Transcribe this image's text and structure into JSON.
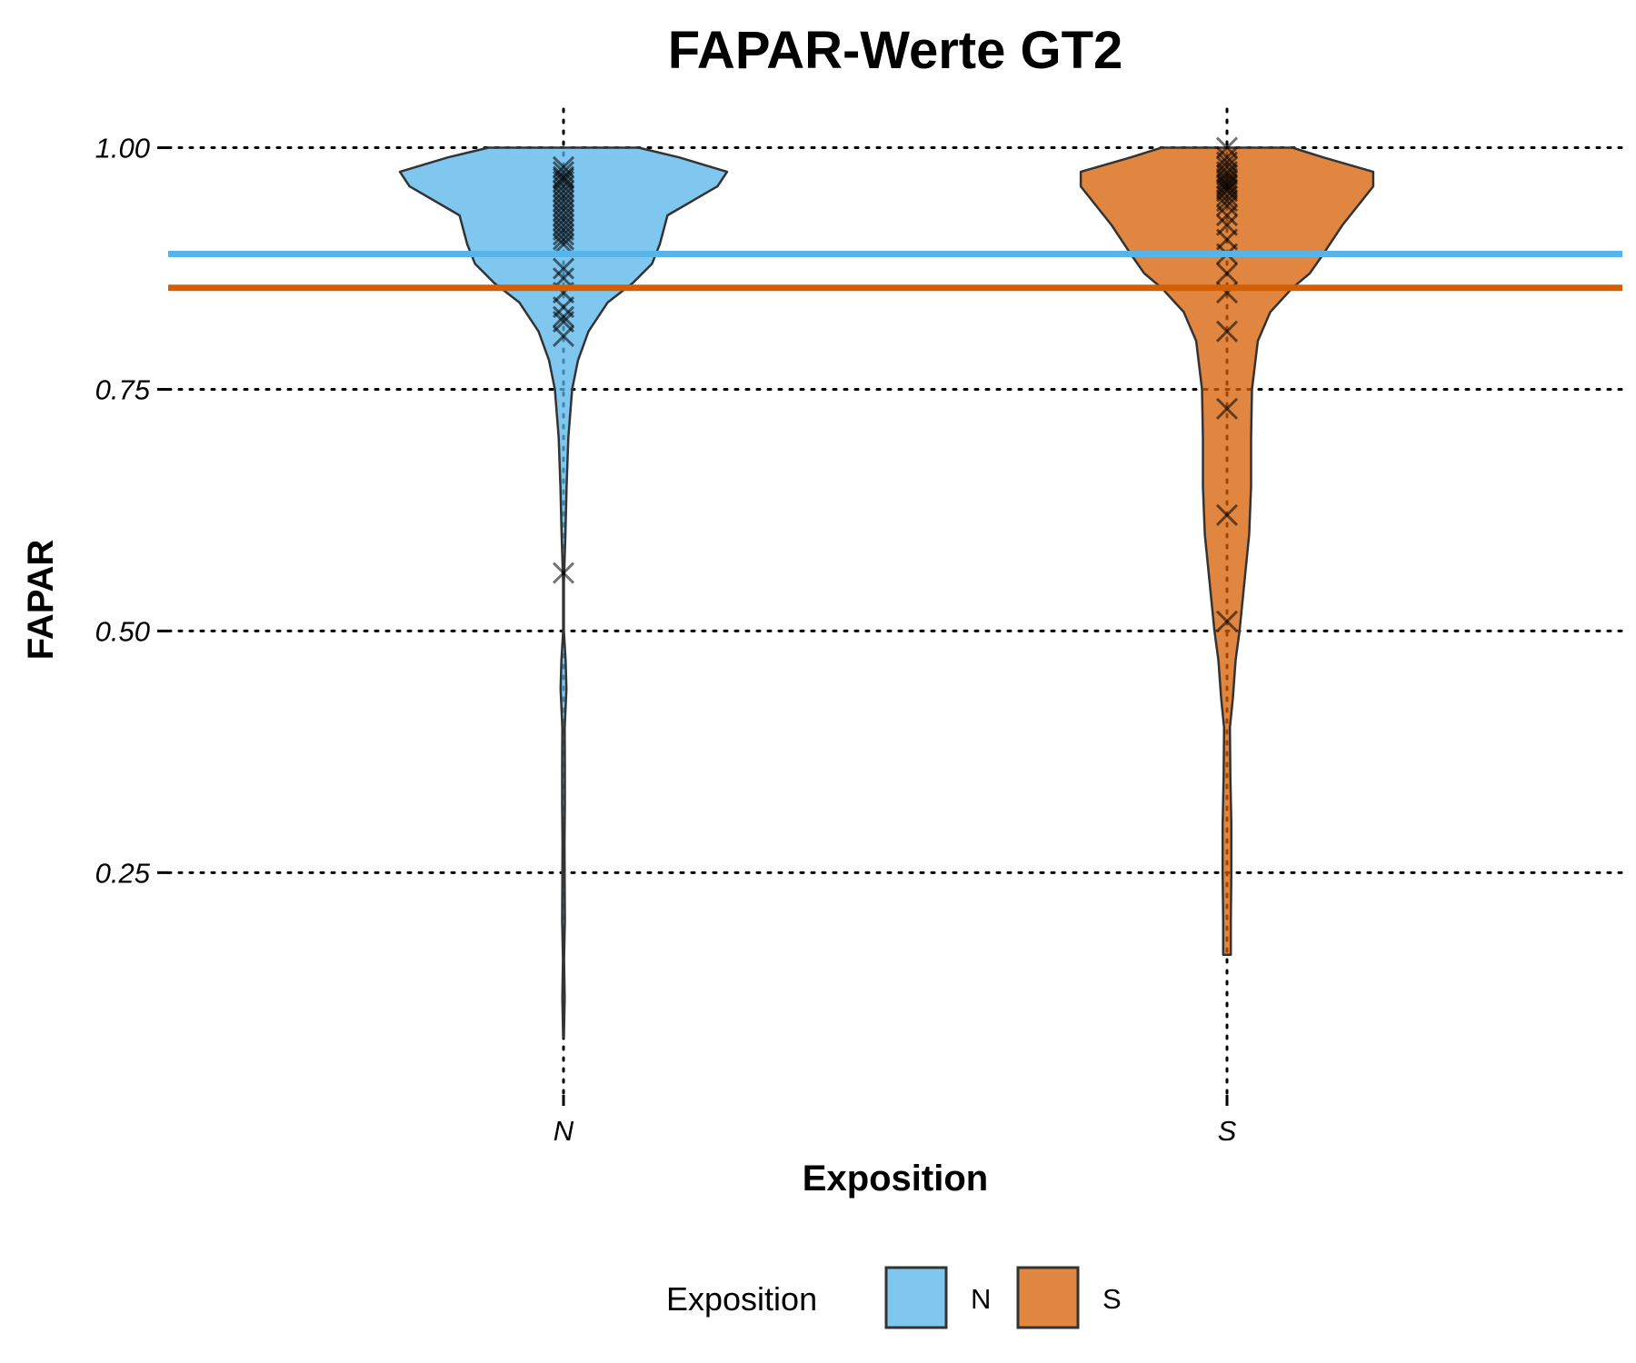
{
  "chart_data": {
    "type": "violin",
    "title": "FAPAR-Werte GT2",
    "xlabel": "Exposition",
    "ylabel": "FAPAR",
    "categories": [
      "N",
      "S"
    ],
    "y_ticks": [
      "0.25",
      "0.50",
      "0.75",
      "1.00"
    ],
    "ylim": [
      0.02,
      1.04
    ],
    "grid": "dotted, major x and y",
    "colors": {
      "N": "#56B4E9",
      "S": "#D55E00"
    },
    "reference_lines": [
      {
        "category": "N",
        "y": 0.89
      },
      {
        "category": "S",
        "y": 0.855
      }
    ],
    "violins": [
      {
        "category": "N",
        "min": 0.08,
        "max": 1.0,
        "density_profile": [
          [
            0.08,
            0.004
          ],
          [
            0.12,
            0.012
          ],
          [
            0.16,
            0.006
          ],
          [
            0.2,
            0.014
          ],
          [
            0.24,
            0.012
          ],
          [
            0.28,
            0.01
          ],
          [
            0.32,
            0.014
          ],
          [
            0.36,
            0.014
          ],
          [
            0.4,
            0.012
          ],
          [
            0.44,
            0.03
          ],
          [
            0.47,
            0.022
          ],
          [
            0.5,
            0.004
          ],
          [
            0.55,
            0.004
          ],
          [
            0.6,
            0.02
          ],
          [
            0.65,
            0.032
          ],
          [
            0.7,
            0.05
          ],
          [
            0.75,
            0.09
          ],
          [
            0.78,
            0.15
          ],
          [
            0.81,
            0.26
          ],
          [
            0.84,
            0.46
          ],
          [
            0.86,
            0.72
          ],
          [
            0.88,
            0.92
          ],
          [
            0.9,
            1.0
          ],
          [
            0.93,
            1.08
          ],
          [
            0.96,
            1.6
          ],
          [
            0.975,
            1.7
          ],
          [
            0.99,
            1.2
          ],
          [
            1.0,
            0.78
          ]
        ],
        "points": [
          0.98,
          0.975,
          0.97,
          0.968,
          0.965,
          0.96,
          0.955,
          0.95,
          0.945,
          0.94,
          0.935,
          0.93,
          0.925,
          0.92,
          0.915,
          0.91,
          0.905,
          0.9,
          0.875,
          0.865,
          0.85,
          0.835,
          0.825,
          0.82,
          0.805,
          0.56
        ]
      },
      {
        "category": "S",
        "min": 0.165,
        "max": 1.0,
        "density_profile": [
          [
            0.165,
            0.04
          ],
          [
            0.2,
            0.04
          ],
          [
            0.25,
            0.045
          ],
          [
            0.3,
            0.045
          ],
          [
            0.35,
            0.035
          ],
          [
            0.4,
            0.03
          ],
          [
            0.43,
            0.06
          ],
          [
            0.47,
            0.09
          ],
          [
            0.5,
            0.13
          ],
          [
            0.55,
            0.18
          ],
          [
            0.6,
            0.23
          ],
          [
            0.65,
            0.25
          ],
          [
            0.7,
            0.25
          ],
          [
            0.75,
            0.26
          ],
          [
            0.8,
            0.32
          ],
          [
            0.83,
            0.45
          ],
          [
            0.855,
            0.68
          ],
          [
            0.87,
            0.86
          ],
          [
            0.89,
            1.0
          ],
          [
            0.92,
            1.2
          ],
          [
            0.96,
            1.52
          ],
          [
            0.975,
            1.52
          ],
          [
            0.99,
            1.0
          ],
          [
            1.0,
            0.68
          ]
        ],
        "points": [
          1.0,
          0.99,
          0.985,
          0.98,
          0.975,
          0.972,
          0.968,
          0.965,
          0.962,
          0.96,
          0.957,
          0.955,
          0.95,
          0.945,
          0.94,
          0.93,
          0.92,
          0.905,
          0.89,
          0.87,
          0.85,
          0.81,
          0.73,
          0.62,
          0.51
        ]
      }
    ],
    "legend": {
      "title": "Exposition",
      "entries": [
        "N",
        "S"
      ],
      "placement": "bottom"
    }
  }
}
